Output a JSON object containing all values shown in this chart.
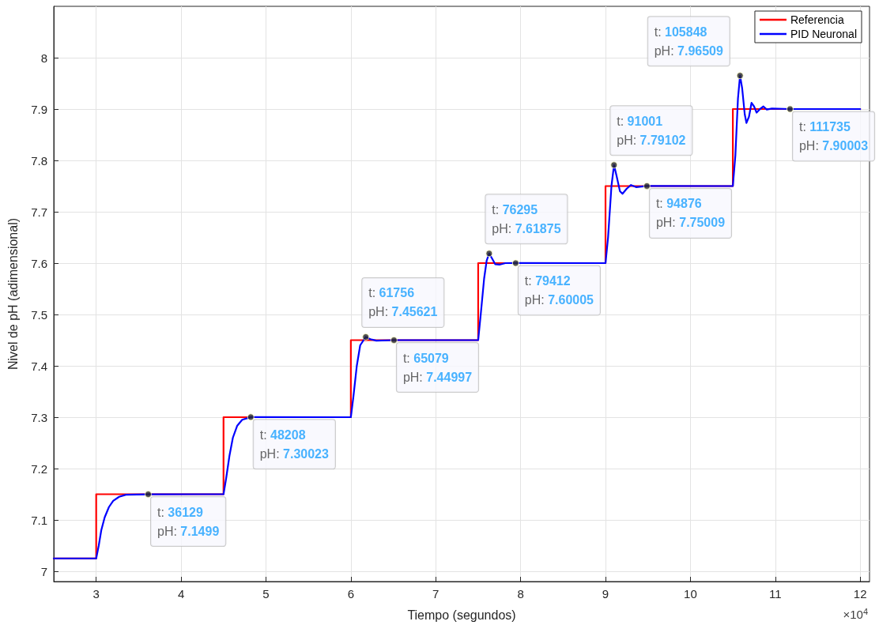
{
  "chart_data": {
    "type": "line",
    "xlabel": "Tiempo (segundos)",
    "ylabel": "Nivel de pH (adimensional)",
    "xlim": [
      2.5,
      12.11
    ],
    "ylim": [
      6.98,
      8.1
    ],
    "xticks": [
      3,
      4,
      5,
      6,
      7,
      8,
      9,
      10,
      11,
      12
    ],
    "yticks": [
      7,
      7.1,
      7.2,
      7.3,
      7.4,
      7.5,
      7.6,
      7.7,
      7.8,
      7.9,
      8
    ],
    "grid": true,
    "legend": "top right",
    "marker": "none",
    "series": [
      {
        "name": "Referencia",
        "type": "step",
        "color": "#ff0000",
        "x": [
          2.5,
          3,
          4.5,
          6,
          7.5,
          9,
          10.5,
          12
        ],
        "values": [
          7.025,
          7.15,
          7.3,
          7.45,
          7.6,
          7.75,
          7.9,
          7.9
        ]
      },
      {
        "name": "PID Neuronal",
        "color": "#0000ff",
        "x": [
          2.5,
          3,
          3.03,
          3.06,
          3.1,
          3.15,
          3.2,
          3.27,
          3.35,
          3.6129,
          4.5,
          4.53,
          4.57,
          4.61,
          4.66,
          4.72,
          4.8208,
          6,
          6.03,
          6.07,
          6.11,
          6.1756,
          6.23,
          6.3,
          6.5079,
          7.5,
          7.53,
          7.57,
          7.6,
          7.6295,
          7.66,
          7.7,
          7.75,
          7.82,
          7.9412,
          9,
          9.03,
          9.07,
          9.1001,
          9.13,
          9.17,
          9.2,
          9.25,
          9.3,
          9.36,
          9.4876,
          10.5,
          10.53,
          10.56,
          10.5848,
          10.61,
          10.64,
          10.66,
          10.69,
          10.72,
          10.75,
          10.78,
          10.82,
          10.86,
          10.9,
          10.96,
          11.1735,
          12
        ],
        "values": [
          7.025,
          7.025,
          7.05,
          7.08,
          7.105,
          7.125,
          7.137,
          7.145,
          7.149,
          7.1499,
          7.15,
          7.18,
          7.225,
          7.26,
          7.283,
          7.295,
          7.30023,
          7.3,
          7.34,
          7.4,
          7.44,
          7.45621,
          7.452,
          7.449,
          7.44997,
          7.45,
          7.5,
          7.57,
          7.605,
          7.61875,
          7.61,
          7.598,
          7.597,
          7.6,
          7.60005,
          7.6,
          7.65,
          7.75,
          7.79102,
          7.77,
          7.74,
          7.735,
          7.745,
          7.752,
          7.748,
          7.75009,
          7.75,
          7.81,
          7.92,
          7.96509,
          7.94,
          7.89,
          7.873,
          7.885,
          7.912,
          7.905,
          7.893,
          7.9,
          7.905,
          7.899,
          7.901,
          7.90003,
          7.9
        ]
      }
    ],
    "annotations": [
      {
        "text": "t: 36129\npH: 7.1499",
        "x": 3.6129,
        "y": 7.1499
      },
      {
        "text": "t: 48208\npH: 7.30023",
        "x": 4.8208,
        "y": 7.30023
      },
      {
        "text": "t: 61756\npH: 7.45621",
        "x": 6.1756,
        "y": 7.45621
      },
      {
        "text": "t: 65079\npH: 7.44997",
        "x": 6.5079,
        "y": 7.44997
      },
      {
        "text": "t: 76295\npH: 7.61875",
        "x": 7.6295,
        "y": 7.61875
      },
      {
        "text": "t: 79412\npH: 7.60005",
        "x": 7.9412,
        "y": 7.60005
      },
      {
        "text": "t: 91001\npH: 7.79102",
        "x": 9.1001,
        "y": 7.79102
      },
      {
        "text": "t: 94876\npH: 7.75009",
        "x": 9.4876,
        "y": 7.75009
      },
      {
        "text": "t: 105848\npH: 7.96509",
        "x": 10.5848,
        "y": 7.96509
      },
      {
        "text": "t: 111735\npH: 7.90003",
        "x": 11.1735,
        "y": 7.90003
      },
      "×10$^{4}$"
    ]
  }
}
